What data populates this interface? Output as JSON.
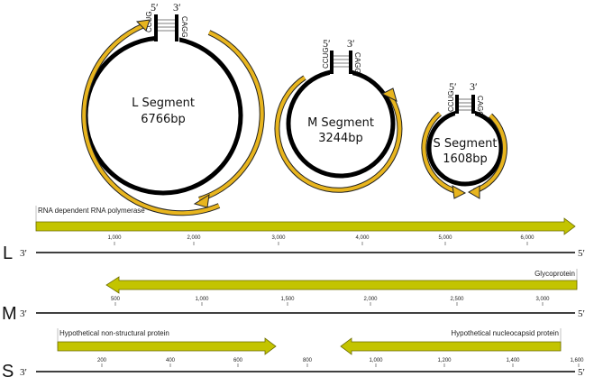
{
  "circles": [
    {
      "name_line1": "L Segment",
      "name_line2": "6766bp",
      "end5": "5′",
      "end3": "3′",
      "seq_left": "CCUG",
      "seq_right": "CAGG"
    },
    {
      "name_line1": "M Segment",
      "name_line2": "3244bp",
      "end5": "5′",
      "end3": "3′",
      "seq_left": "CCUG",
      "seq_right": "CAGG"
    },
    {
      "name_line1": "S Segment",
      "name_line2": "1608bp",
      "end5": "5′",
      "end3": "3′",
      "seq_left": "CCUG",
      "seq_right": "CAGG"
    }
  ],
  "tracks": [
    {
      "letter": "L",
      "end_left": "3′",
      "end_right": "5′",
      "ticks": [
        "1,000",
        "2,000",
        "3,000",
        "4,000",
        "5,000",
        "6,000"
      ],
      "genes": [
        {
          "label": "RNA dependent RNA polymerase",
          "direction": "right"
        }
      ]
    },
    {
      "letter": "M",
      "end_left": "3′",
      "end_right": "5′",
      "ticks": [
        "500",
        "1,000",
        "1,500",
        "2,000",
        "2,500",
        "3,000"
      ],
      "genes": [
        {
          "label": "Glycoprotein",
          "direction": "left"
        }
      ]
    },
    {
      "letter": "S",
      "end_left": "3′",
      "end_right": "5′",
      "ticks": [
        "200",
        "400",
        "600",
        "800",
        "1,000",
        "1,200",
        "1,400",
        "1,600"
      ],
      "genes": [
        {
          "label": "Hypothetical non-structural protein",
          "direction": "right"
        },
        {
          "label": "Hypothetical nucleocapsid protein",
          "direction": "left"
        }
      ]
    }
  ],
  "colors": {
    "arrow_fill": "#E8B51E",
    "gene_fill": "#C3C400",
    "line": "#000000"
  }
}
